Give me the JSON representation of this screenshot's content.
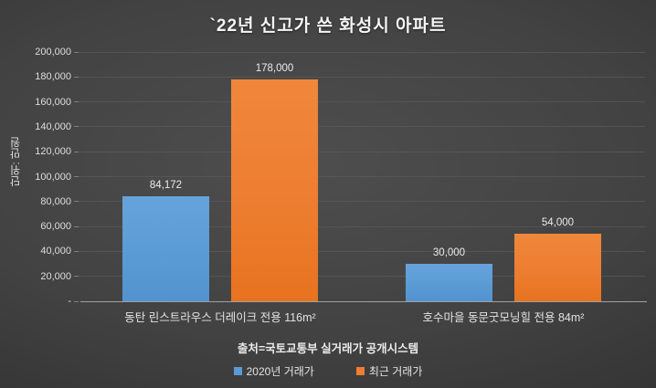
{
  "title": "`22년 신고가 쓴 화성시 아파트",
  "source": {
    "text": "출처=국토교통부 실거래가 공개시스템"
  },
  "colors": {
    "background_center": "#4e4e4e",
    "background_edge": "#2b2b2b",
    "series_blue": "#5B9BD5",
    "series_orange": "#ED7D31",
    "gridline": "#5a5a5a",
    "axis_line": "#a0a0a0",
    "text": "#e6e6e6"
  },
  "chart_data": {
    "type": "bar",
    "title": "`22년 신고가 쓴 화성시 아파트",
    "ylabel": "단위: 만원",
    "xlabel": "",
    "categories": [
      "동탄 린스트라우스 더레이크 전용 116m²",
      "호수마을 동문굿모닝힐 전용 84m²"
    ],
    "series": [
      {
        "name": "2020년 거래가",
        "color": "#5B9BD5",
        "values": [
          84172,
          30000
        ]
      },
      {
        "name": "최근 거래가",
        "color": "#ED7D31",
        "values": [
          178000,
          54000
        ]
      }
    ],
    "value_labels": [
      [
        "84,172",
        "30,000"
      ],
      [
        "178,000",
        "54,000"
      ]
    ],
    "ylim": [
      0,
      200000
    ],
    "yticks": [
      {
        "value": 0,
        "label": "-"
      },
      {
        "value": 20000,
        "label": "20,000"
      },
      {
        "value": 40000,
        "label": "40,000"
      },
      {
        "value": 60000,
        "label": "60,000"
      },
      {
        "value": 80000,
        "label": "80,000"
      },
      {
        "value": 100000,
        "label": "100,000"
      },
      {
        "value": 120000,
        "label": "120,000"
      },
      {
        "value": 140000,
        "label": "140,000"
      },
      {
        "value": 160000,
        "label": "160,000"
      },
      {
        "value": 180000,
        "label": "180,000"
      },
      {
        "value": 200000,
        "label": "200,000"
      }
    ],
    "grid": true,
    "legend_position": "bottom"
  }
}
